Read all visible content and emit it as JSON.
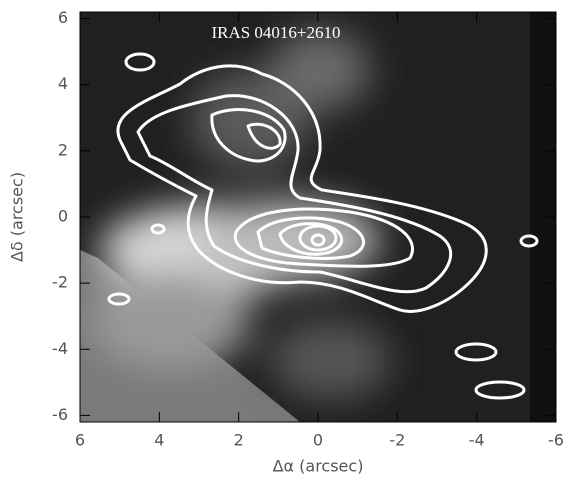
{
  "chart_data": {
    "type": "image",
    "title": "IRAS 04016+2610",
    "x_label": "Δα (arcsec)",
    "y_label": "Δδ (arcsec)",
    "xlim": [
      6,
      -6
    ],
    "xticks": [
      6,
      4,
      2,
      0,
      -2,
      -4,
      -6
    ],
    "ylim": [
      -6.2,
      6.2
    ],
    "yticks": [
      -6,
      -4,
      -2,
      0,
      2,
      4,
      6
    ],
    "contour_color": "#ffffff"
  }
}
